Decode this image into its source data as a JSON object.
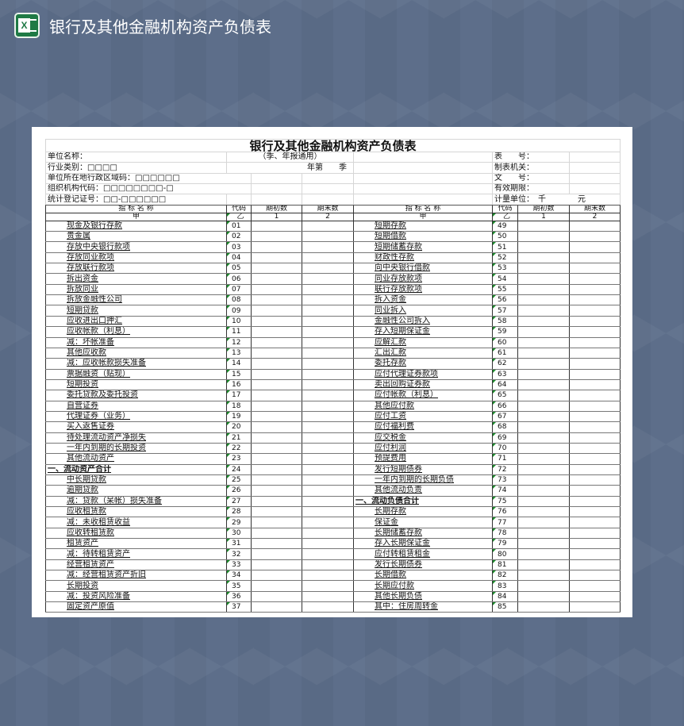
{
  "app": {
    "title": "银行及其他金融机构资产负债表",
    "icon": "excel-icon",
    "accent": "#1f7a45"
  },
  "sheet": {
    "title": "银行及其他金融机构资产负债表",
    "subtitle": "（季、年报通用）",
    "period": "年第　　季",
    "info_left": [
      "单位名称：",
      "行业类别：□□□□",
      "单位所在地行政区域码：□□□□□□",
      "组织机构代码：□□□□□□□□-□",
      "统计登记证号：□□-□□□□□□"
    ],
    "info_right": [
      "表　　号：",
      "制表机关：",
      "文　　号：",
      "有效期限：",
      "计量单位：　千　　　　元"
    ],
    "headers": {
      "name": "指 标 名 称",
      "code": "代码",
      "begin": "期初数",
      "end": "期末数"
    },
    "subheaders": {
      "name": "甲",
      "code": "乙",
      "begin": "1",
      "end": "2"
    },
    "left_rows": [
      [
        "现金及银行存款",
        "01"
      ],
      [
        "贵金属",
        "02"
      ],
      [
        "存放中央银行款项",
        "03"
      ],
      [
        "存放同业款项",
        "04"
      ],
      [
        "存放联行款项",
        "05"
      ],
      [
        "拆出资金",
        "06"
      ],
      [
        "拆放同业",
        "07"
      ],
      [
        "拆放金融性公司",
        "08"
      ],
      [
        "短期贷款",
        "09"
      ],
      [
        "应收进出口押汇",
        "10"
      ],
      [
        "应收帐款（利息）",
        "11"
      ],
      [
        "减：坏帐准备",
        "12"
      ],
      [
        "其他应收款",
        "13"
      ],
      [
        "减：应收帐款损失准备",
        "14"
      ],
      [
        "票据融资（贴现）",
        "15"
      ],
      [
        "短期投资",
        "16"
      ],
      [
        "委托贷款及委托投资",
        "17"
      ],
      [
        "自营证券",
        "18"
      ],
      [
        "代理证券（业务）",
        "19"
      ],
      [
        "买入返售证券",
        "20"
      ],
      [
        "待处理流动资产净损失",
        "21"
      ],
      [
        "一年内到期的长期投资",
        "22"
      ],
      [
        "其他流动资产",
        "23"
      ],
      [
        "一、流动资产合计",
        "24"
      ],
      [
        "中长期贷款",
        "25"
      ],
      [
        "逾期贷款",
        "26"
      ],
      [
        "减：贷款（呆帐）损失准备",
        "27"
      ],
      [
        "应收租赁款",
        "28"
      ],
      [
        "减：未收租赁收益",
        "29"
      ],
      [
        "应收转租赁款",
        "30"
      ],
      [
        "租赁资产",
        "31"
      ],
      [
        "减：待转租赁资产",
        "32"
      ],
      [
        "经营租赁资产",
        "33"
      ],
      [
        "减：经营租赁资产折旧",
        "34"
      ],
      [
        "长期投资",
        "35"
      ],
      [
        "减：投资风险准备",
        "36"
      ],
      [
        "固定资产原值",
        "37"
      ]
    ],
    "right_rows": [
      [
        "短期存款",
        "49"
      ],
      [
        "短期借款",
        "50"
      ],
      [
        "短期储蓄存款",
        "51"
      ],
      [
        "财政性存款",
        "52"
      ],
      [
        "向中央银行借款",
        "53"
      ],
      [
        "同业存放款项",
        "54"
      ],
      [
        "联行存放款项",
        "55"
      ],
      [
        "拆入资金",
        "56"
      ],
      [
        "同业拆入",
        "57"
      ],
      [
        "金融性公司拆入",
        "58"
      ],
      [
        "存入短期保证金",
        "59"
      ],
      [
        "应解汇款",
        "60"
      ],
      [
        "汇出汇款",
        "61"
      ],
      [
        "委托存款",
        "62"
      ],
      [
        "应付代理证券款项",
        "63"
      ],
      [
        "卖出回购证券款",
        "64"
      ],
      [
        "应付帐款（利息）",
        "65"
      ],
      [
        "其他应付款",
        "66"
      ],
      [
        "应付工资",
        "67"
      ],
      [
        "应付福利费",
        "68"
      ],
      [
        "应交税金",
        "69"
      ],
      [
        "应付利润",
        "70"
      ],
      [
        "预提费用",
        "71"
      ],
      [
        "发行短期债券",
        "72"
      ],
      [
        "一年内到期的长期负债",
        "73"
      ],
      [
        "其他流动负责",
        "74"
      ],
      [
        "一、流动负债合计",
        "75"
      ],
      [
        "长期存款",
        "76"
      ],
      [
        "保证金",
        "77"
      ],
      [
        "长期储蓄存款",
        "78"
      ],
      [
        "存入长期保证金",
        "79"
      ],
      [
        "应付转租赁租金",
        "80"
      ],
      [
        "发行长期债券",
        "81"
      ],
      [
        "长期借款",
        "82"
      ],
      [
        "长期应付款",
        "83"
      ],
      [
        "其他长期负债",
        "84"
      ],
      [
        "其中：住房周转金",
        "85"
      ]
    ]
  }
}
